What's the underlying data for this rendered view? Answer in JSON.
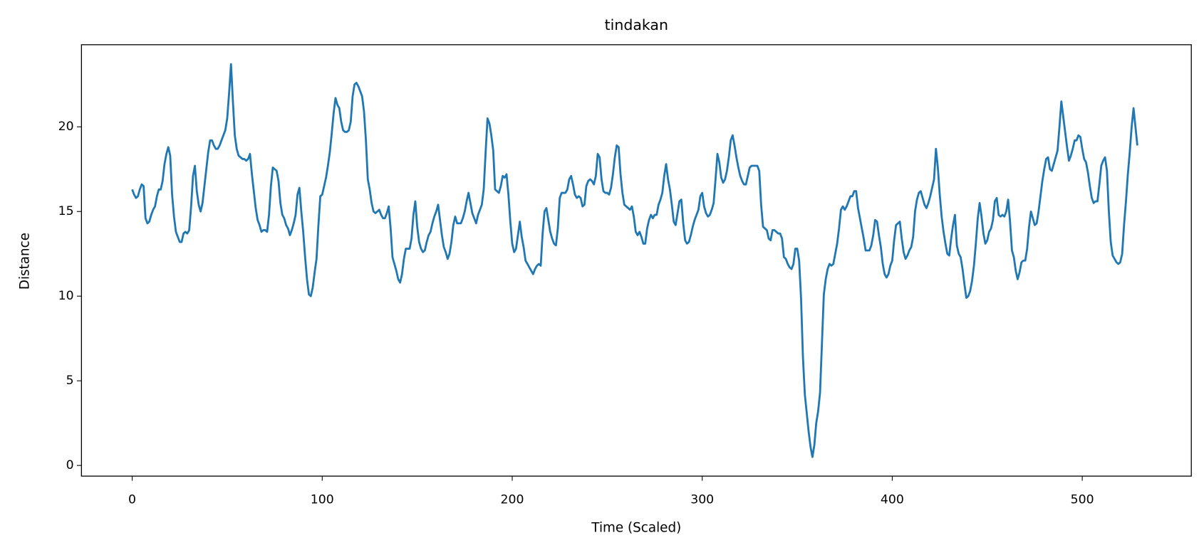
{
  "chart_data": {
    "type": "line",
    "title": "tindakan",
    "xlabel": "Time (Scaled)",
    "ylabel": "Distance",
    "color": "#1f77b4",
    "x": [
      0,
      1,
      2,
      3,
      4,
      5,
      6,
      7,
      8,
      9,
      10,
      11,
      12,
      13,
      14,
      15,
      16,
      17,
      18,
      19,
      20,
      21,
      22,
      23,
      24,
      25,
      26,
      27,
      28,
      29,
      30,
      31,
      32,
      33,
      34,
      35,
      36,
      37,
      38,
      39,
      40,
      41,
      42,
      43,
      44,
      45,
      46,
      47,
      48,
      49,
      50,
      51,
      52,
      53,
      54,
      55,
      56,
      57,
      58,
      59,
      60,
      61,
      62,
      63,
      64,
      65,
      66,
      67,
      68,
      69,
      70,
      71,
      72,
      73,
      74,
      75,
      76,
      77,
      78,
      79,
      80,
      81,
      82,
      83,
      84,
      85,
      86,
      87,
      88,
      89,
      90,
      91,
      92,
      93,
      94,
      95,
      96,
      97,
      98,
      99,
      100,
      101,
      102,
      103,
      104,
      105,
      106,
      107,
      108,
      109,
      110,
      111,
      112,
      113,
      114,
      115,
      116,
      117,
      118,
      119,
      120,
      121,
      122,
      123,
      124,
      125,
      126,
      127,
      128,
      129,
      130,
      131,
      132,
      133,
      134,
      135,
      136,
      137,
      138,
      139,
      140,
      141,
      142,
      143,
      144,
      145,
      146,
      147,
      148,
      149,
      150,
      151,
      152,
      153,
      154,
      155,
      156,
      157,
      158,
      159,
      160,
      161,
      162,
      163,
      164,
      165,
      166,
      167,
      168,
      169,
      170,
      171,
      172,
      173,
      174,
      175,
      176,
      177,
      178,
      179,
      180,
      181,
      182,
      183,
      184,
      185,
      186,
      187,
      188,
      189,
      190,
      191,
      192,
      193,
      194,
      195,
      196,
      197,
      198,
      199,
      200,
      201,
      202,
      203,
      204,
      205,
      206,
      207,
      208,
      209,
      210,
      211,
      212,
      213,
      214,
      215,
      216,
      217,
      218,
      219,
      220,
      221,
      222,
      223,
      224,
      225,
      226,
      227,
      228,
      229,
      230,
      231,
      232,
      233,
      234,
      235,
      236,
      237,
      238,
      239,
      240,
      241,
      242,
      243,
      244,
      245,
      246,
      247,
      248,
      249,
      250,
      251,
      252,
      253,
      254,
      255,
      256,
      257,
      258,
      259,
      260,
      261,
      262,
      263,
      264,
      265,
      266,
      267,
      268,
      269,
      270,
      271,
      272,
      273,
      274,
      275,
      276,
      277,
      278,
      279,
      280,
      281,
      282,
      283,
      284,
      285,
      286,
      287,
      288,
      289,
      290,
      291,
      292,
      293,
      294,
      295,
      296,
      297,
      298,
      299,
      300,
      301,
      302,
      303,
      304,
      305,
      306,
      307,
      308,
      309,
      310,
      311,
      312,
      313,
      314,
      315,
      316,
      317,
      318,
      319,
      320,
      321,
      322,
      323,
      324,
      325,
      326,
      327,
      328,
      329,
      330,
      331,
      332,
      333,
      334,
      335,
      336,
      337,
      338,
      339,
      340,
      341,
      342,
      343,
      344,
      345,
      346,
      347,
      348,
      349,
      350,
      351,
      352,
      353,
      354,
      355,
      356,
      357,
      358,
      359,
      360,
      361,
      362,
      363,
      364,
      365,
      366,
      367,
      368,
      369,
      370,
      371,
      372,
      373,
      374,
      375,
      376,
      377,
      378,
      379,
      380,
      381,
      382,
      383,
      384,
      385,
      386,
      387,
      388,
      389,
      390,
      391,
      392,
      393,
      394,
      395,
      396,
      397,
      398,
      399,
      400,
      401,
      402,
      403,
      404,
      405,
      406,
      407,
      408,
      409,
      410,
      411,
      412,
      413,
      414,
      415,
      416,
      417,
      418,
      419,
      420,
      421,
      422,
      423,
      424,
      425,
      426,
      427,
      428,
      429,
      430,
      431,
      432,
      433,
      434,
      435,
      436,
      437,
      438,
      439,
      440,
      441,
      442,
      443,
      444,
      445,
      446,
      447,
      448,
      449,
      450,
      451,
      452,
      453,
      454,
      455,
      456,
      457,
      458,
      459,
      460,
      461,
      462,
      463,
      464,
      465,
      466,
      467,
      468,
      469,
      470,
      471,
      472,
      473,
      474,
      475,
      476,
      477,
      478,
      479,
      480,
      481,
      482,
      483,
      484,
      485,
      486,
      487,
      488,
      489,
      490,
      491,
      492,
      493,
      494,
      495,
      496,
      497,
      498,
      499,
      500,
      501,
      502,
      503,
      504,
      505,
      506,
      507,
      508,
      509,
      510,
      511,
      512,
      513,
      514,
      515,
      516,
      517,
      518,
      519,
      520,
      521,
      522,
      523,
      524,
      525,
      526,
      527,
      528,
      529
    ],
    "values": [
      16.3,
      16.0,
      15.8,
      15.9,
      16.3,
      16.6,
      16.5,
      14.6,
      14.3,
      14.4,
      14.8,
      15.1,
      15.3,
      15.9,
      16.3,
      16.3,
      16.8,
      17.8,
      18.4,
      18.8,
      18.3,
      16.0,
      14.7,
      13.8,
      13.5,
      13.2,
      13.2,
      13.7,
      13.8,
      13.7,
      13.9,
      15.3,
      17.1,
      17.7,
      16.2,
      15.4,
      15.0,
      15.5,
      16.5,
      17.5,
      18.5,
      19.2,
      19.2,
      18.9,
      18.7,
      18.7,
      18.9,
      19.2,
      19.5,
      19.8,
      20.5,
      22.0,
      23.7,
      21.5,
      19.5,
      18.7,
      18.3,
      18.2,
      18.1,
      18.1,
      18.0,
      18.1,
      18.4,
      17.2,
      16.2,
      15.2,
      14.5,
      14.2,
      13.8,
      13.9,
      13.9,
      13.8,
      14.8,
      16.5,
      17.6,
      17.5,
      17.4,
      16.8,
      15.5,
      14.8,
      14.6,
      14.2,
      14.0,
      13.6,
      13.9,
      14.3,
      14.8,
      16.0,
      16.4,
      15.0,
      13.8,
      12.3,
      11.0,
      10.1,
      10.0,
      10.5,
      11.4,
      12.2,
      14.2,
      15.9,
      16.0,
      16.5,
      17.0,
      17.7,
      18.5,
      19.6,
      20.8,
      21.7,
      21.3,
      21.1,
      20.3,
      19.8,
      19.7,
      19.7,
      19.8,
      20.3,
      21.8,
      22.5,
      22.6,
      22.4,
      22.1,
      21.8,
      20.9,
      19.2,
      16.9,
      16.3,
      15.5,
      15.0,
      14.9,
      15.0,
      15.1,
      14.8,
      14.6,
      14.6,
      14.9,
      15.3,
      14.0,
      12.3,
      11.9,
      11.5,
      11.0,
      10.8,
      11.3,
      12.2,
      12.8,
      12.8,
      12.8,
      13.4,
      14.8,
      15.6,
      14.1,
      13.2,
      12.8,
      12.6,
      12.7,
      13.2,
      13.6,
      13.8,
      14.3,
      14.7,
      15.0,
      15.4,
      14.5,
      13.6,
      12.9,
      12.6,
      12.2,
      12.5,
      13.2,
      14.2,
      14.7,
      14.3,
      14.3,
      14.3,
      14.6,
      15.0,
      15.6,
      16.1,
      15.5,
      14.9,
      14.6,
      14.3,
      14.8,
      15.1,
      15.4,
      16.3,
      18.5,
      20.5,
      20.2,
      19.5,
      18.6,
      16.3,
      16.2,
      16.1,
      16.5,
      17.1,
      17.0,
      17.2,
      16.0,
      14.4,
      13.1,
      12.6,
      12.8,
      13.6,
      14.4,
      13.5,
      12.9,
      12.1,
      11.9,
      11.7,
      11.5,
      11.3,
      11.6,
      11.8,
      11.9,
      11.8,
      13.7,
      15.0,
      15.2,
      14.5,
      13.8,
      13.4,
      13.1,
      13.0,
      14.0,
      15.8,
      16.1,
      16.1,
      16.1,
      16.3,
      16.9,
      17.1,
      16.6,
      16.0,
      15.8,
      15.9,
      15.8,
      15.3,
      15.4,
      16.5,
      16.8,
      16.9,
      16.8,
      16.6,
      17.1,
      18.4,
      18.2,
      16.9,
      16.2,
      16.1,
      16.1,
      16.0,
      16.4,
      17.2,
      18.2,
      18.9,
      18.8,
      17.2,
      16.1,
      15.4,
      15.3,
      15.2,
      15.1,
      15.3,
      14.7,
      13.8,
      13.6,
      13.8,
      13.5,
      13.1,
      13.1,
      14.0,
      14.5,
      14.8,
      14.6,
      14.8,
      14.8,
      15.4,
      15.7,
      16.1,
      17.1,
      17.8,
      16.9,
      16.3,
      15.4,
      14.4,
      14.2,
      14.9,
      15.6,
      15.7,
      14.3,
      13.3,
      13.1,
      13.2,
      13.6,
      14.1,
      14.5,
      14.8,
      15.1,
      15.9,
      16.1,
      15.3,
      14.9,
      14.7,
      14.8,
      15.1,
      15.5,
      16.9,
      18.4,
      17.9,
      17.0,
      16.7,
      16.9,
      17.4,
      18.2,
      19.2,
      19.5,
      18.9,
      18.2,
      17.6,
      17.1,
      16.8,
      16.6,
      16.6,
      17.1,
      17.6,
      17.7,
      17.7,
      17.7,
      17.7,
      17.4,
      15.4,
      14.1,
      14.0,
      13.9,
      13.4,
      13.3,
      13.9,
      13.9,
      13.8,
      13.7,
      13.7,
      13.4,
      12.3,
      12.2,
      11.9,
      11.7,
      11.6,
      11.9,
      12.8,
      12.8,
      12.1,
      9.9,
      6.4,
      4.2,
      3.1,
      2.0,
      1.1,
      0.5,
      1.2,
      2.5,
      3.2,
      4.3,
      7.2,
      10.1,
      11.0,
      11.6,
      11.9,
      11.8,
      11.9,
      12.5,
      13.1,
      14.0,
      15.1,
      15.3,
      15.1,
      15.3,
      15.6,
      15.9,
      15.9,
      16.2,
      16.2,
      15.2,
      14.6,
      14.0,
      13.4,
      12.7,
      12.7,
      12.7,
      13.0,
      13.6,
      14.5,
      14.4,
      13.6,
      12.9,
      11.9,
      11.3,
      11.1,
      11.3,
      11.8,
      12.1,
      13.3,
      14.2,
      14.3,
      14.4,
      13.4,
      12.6,
      12.2,
      12.4,
      12.7,
      12.9,
      13.5,
      15.0,
      15.7,
      16.1,
      16.2,
      15.8,
      15.4,
      15.2,
      15.5,
      15.9,
      16.4,
      16.9,
      18.7,
      17.6,
      16.0,
      14.7,
      13.8,
      13.1,
      12.5,
      12.4,
      13.4,
      14.2,
      14.8,
      13.0,
      12.5,
      12.3,
      11.6,
      10.7,
      9.9,
      10.0,
      10.3,
      10.9,
      11.8,
      13.1,
      14.6,
      15.5,
      14.7,
      13.7,
      13.1,
      13.3,
      13.8,
      14.0,
      14.5,
      15.6,
      15.8,
      14.8,
      14.7,
      14.8,
      14.7,
      15.0,
      15.7,
      14.4,
      12.7,
      12.3,
      11.5,
      11.0,
      11.4,
      12.0,
      12.1,
      12.1,
      12.8,
      14.1,
      15.0,
      14.6,
      14.2,
      14.3,
      15.0,
      15.9,
      16.8,
      17.5,
      18.1,
      18.2,
      17.5,
      17.4,
      17.8,
      18.2,
      18.6,
      20.0,
      21.5,
      20.6,
      19.7,
      18.8,
      18.0,
      18.3,
      18.7,
      19.2,
      19.2,
      19.5,
      19.4,
      18.7,
      18.1,
      17.9,
      17.3,
      16.5,
      15.8,
      15.5,
      15.6,
      15.6,
      16.6,
      17.7,
      18.0,
      18.2,
      17.4,
      15.0,
      13.2,
      12.4,
      12.2,
      12.0,
      11.9,
      12.0,
      12.5,
      14.2,
      15.6,
      17.2,
      18.5,
      20.0,
      21.1,
      20.0,
      18.9
    ],
    "xlim": [
      -26.7,
      557.4
    ],
    "xticks": [
      0,
      100,
      200,
      300,
      400,
      500
    ],
    "ylim": [
      -0.63,
      24.85
    ],
    "yticks": [
      0,
      5,
      10,
      15,
      20
    ],
    "grid": false
  }
}
